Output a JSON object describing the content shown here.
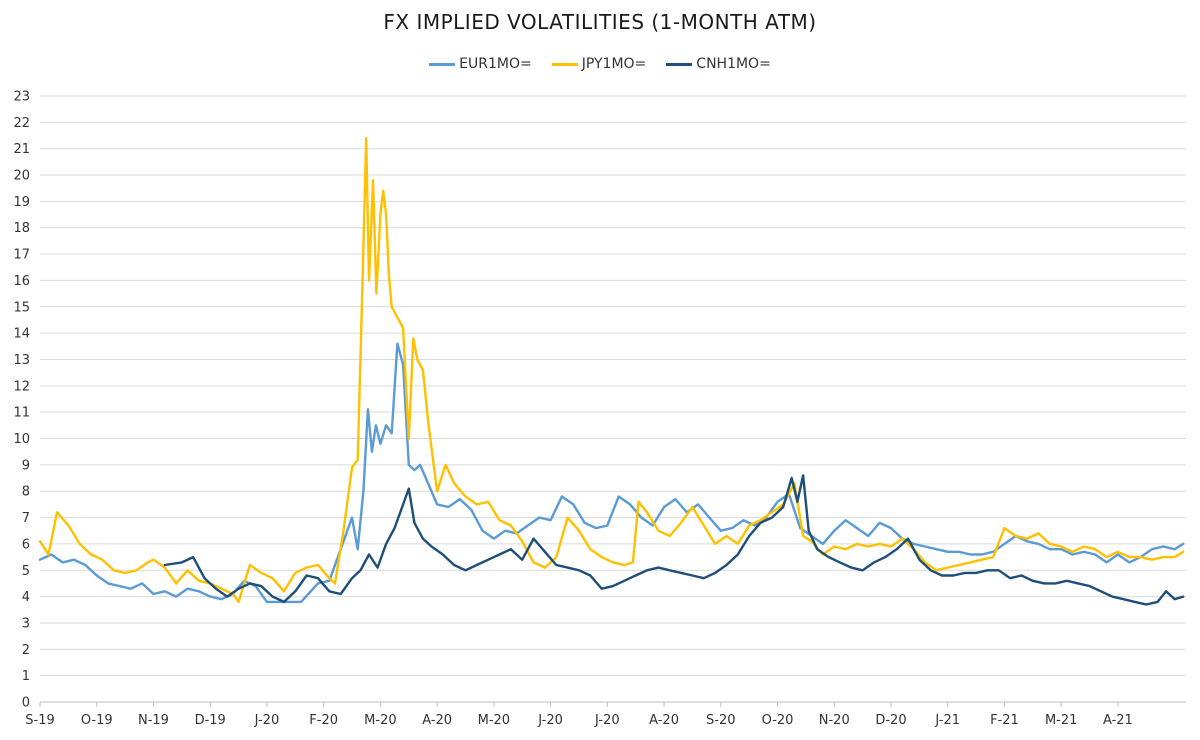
{
  "chart_data": {
    "type": "line",
    "title": "FX IMPLIED VOLATILITIES (1-MONTH ATM)",
    "legend_position": "top",
    "grid": true,
    "ylim": [
      0,
      23
    ],
    "yticks": [
      0,
      1,
      2,
      3,
      4,
      5,
      6,
      7,
      8,
      9,
      10,
      11,
      12,
      13,
      14,
      15,
      16,
      17,
      18,
      19,
      20,
      21,
      22,
      23
    ],
    "xticks": [
      "S-19",
      "O-19",
      "N-19",
      "D-19",
      "J-20",
      "F-20",
      "M-20",
      "A-20",
      "M-20",
      "J-20",
      "J-20",
      "A-20",
      "S-20",
      "O-20",
      "N-20",
      "D-20",
      "J-21",
      "F-21",
      "M-21",
      "A-21"
    ],
    "x_range": [
      0,
      20.2
    ],
    "series": [
      {
        "name": "EUR1MO=",
        "color": "#5b9bd5",
        "points": [
          [
            0,
            5.4
          ],
          [
            0.2,
            5.6
          ],
          [
            0.4,
            5.3
          ],
          [
            0.6,
            5.4
          ],
          [
            0.8,
            5.2
          ],
          [
            1.0,
            4.8
          ],
          [
            1.2,
            4.5
          ],
          [
            1.4,
            4.4
          ],
          [
            1.6,
            4.3
          ],
          [
            1.8,
            4.5
          ],
          [
            2.0,
            4.1
          ],
          [
            2.2,
            4.2
          ],
          [
            2.4,
            4.0
          ],
          [
            2.6,
            4.3
          ],
          [
            2.8,
            4.2
          ],
          [
            3.0,
            4.0
          ],
          [
            3.2,
            3.9
          ],
          [
            3.4,
            4.1
          ],
          [
            3.6,
            4.6
          ],
          [
            3.8,
            4.4
          ],
          [
            4.0,
            3.8
          ],
          [
            4.3,
            3.8
          ],
          [
            4.6,
            3.8
          ],
          [
            4.9,
            4.5
          ],
          [
            5.1,
            4.6
          ],
          [
            5.3,
            5.8
          ],
          [
            5.5,
            7.0
          ],
          [
            5.6,
            5.8
          ],
          [
            5.7,
            8.0
          ],
          [
            5.78,
            11.1
          ],
          [
            5.85,
            9.5
          ],
          [
            5.92,
            10.5
          ],
          [
            6.0,
            9.8
          ],
          [
            6.1,
            10.5
          ],
          [
            6.2,
            10.2
          ],
          [
            6.3,
            13.6
          ],
          [
            6.4,
            12.8
          ],
          [
            6.5,
            9.0
          ],
          [
            6.6,
            8.8
          ],
          [
            6.7,
            9.0
          ],
          [
            6.8,
            8.5
          ],
          [
            7.0,
            7.5
          ],
          [
            7.2,
            7.4
          ],
          [
            7.4,
            7.7
          ],
          [
            7.6,
            7.3
          ],
          [
            7.8,
            6.5
          ],
          [
            8.0,
            6.2
          ],
          [
            8.2,
            6.5
          ],
          [
            8.4,
            6.4
          ],
          [
            8.6,
            6.7
          ],
          [
            8.8,
            7.0
          ],
          [
            9.0,
            6.9
          ],
          [
            9.2,
            7.8
          ],
          [
            9.4,
            7.5
          ],
          [
            9.6,
            6.8
          ],
          [
            9.8,
            6.6
          ],
          [
            10.0,
            6.7
          ],
          [
            10.2,
            7.8
          ],
          [
            10.4,
            7.5
          ],
          [
            10.6,
            7.0
          ],
          [
            10.8,
            6.7
          ],
          [
            11.0,
            7.4
          ],
          [
            11.2,
            7.7
          ],
          [
            11.4,
            7.2
          ],
          [
            11.6,
            7.5
          ],
          [
            11.8,
            7.0
          ],
          [
            12.0,
            6.5
          ],
          [
            12.2,
            6.6
          ],
          [
            12.4,
            6.9
          ],
          [
            12.6,
            6.7
          ],
          [
            12.8,
            7.0
          ],
          [
            13.0,
            7.6
          ],
          [
            13.2,
            7.9
          ],
          [
            13.4,
            6.6
          ],
          [
            13.6,
            6.3
          ],
          [
            13.8,
            6.0
          ],
          [
            14.0,
            6.5
          ],
          [
            14.2,
            6.9
          ],
          [
            14.4,
            6.6
          ],
          [
            14.6,
            6.3
          ],
          [
            14.8,
            6.8
          ],
          [
            15.0,
            6.6
          ],
          [
            15.2,
            6.2
          ],
          [
            15.4,
            6.0
          ],
          [
            15.6,
            5.9
          ],
          [
            15.8,
            5.8
          ],
          [
            16.0,
            5.7
          ],
          [
            16.2,
            5.7
          ],
          [
            16.4,
            5.6
          ],
          [
            16.6,
            5.6
          ],
          [
            16.8,
            5.7
          ],
          [
            17.0,
            6.0
          ],
          [
            17.2,
            6.3
          ],
          [
            17.4,
            6.1
          ],
          [
            17.6,
            6.0
          ],
          [
            17.8,
            5.8
          ],
          [
            18.0,
            5.8
          ],
          [
            18.2,
            5.6
          ],
          [
            18.4,
            5.7
          ],
          [
            18.6,
            5.6
          ],
          [
            18.8,
            5.3
          ],
          [
            19.0,
            5.6
          ],
          [
            19.2,
            5.3
          ],
          [
            19.4,
            5.5
          ],
          [
            19.6,
            5.8
          ],
          [
            19.8,
            5.9
          ],
          [
            20.0,
            5.8
          ],
          [
            20.15,
            6.0
          ]
        ]
      },
      {
        "name": "JPY1MO=",
        "color": "#ffc000",
        "points": [
          [
            0,
            6.1
          ],
          [
            0.15,
            5.6
          ],
          [
            0.3,
            7.2
          ],
          [
            0.5,
            6.7
          ],
          [
            0.7,
            6.0
          ],
          [
            0.9,
            5.6
          ],
          [
            1.1,
            5.4
          ],
          [
            1.3,
            5.0
          ],
          [
            1.5,
            4.9
          ],
          [
            1.7,
            5.0
          ],
          [
            1.9,
            5.3
          ],
          [
            2.0,
            5.4
          ],
          [
            2.2,
            5.1
          ],
          [
            2.4,
            4.5
          ],
          [
            2.6,
            5.0
          ],
          [
            2.8,
            4.6
          ],
          [
            3.0,
            4.5
          ],
          [
            3.2,
            4.3
          ],
          [
            3.4,
            4.1
          ],
          [
            3.5,
            3.8
          ],
          [
            3.7,
            5.2
          ],
          [
            3.9,
            4.9
          ],
          [
            4.1,
            4.7
          ],
          [
            4.3,
            4.2
          ],
          [
            4.5,
            4.9
          ],
          [
            4.7,
            5.1
          ],
          [
            4.9,
            5.2
          ],
          [
            5.1,
            4.7
          ],
          [
            5.2,
            4.5
          ],
          [
            5.35,
            6.5
          ],
          [
            5.5,
            8.9
          ],
          [
            5.6,
            9.2
          ],
          [
            5.68,
            15.5
          ],
          [
            5.75,
            21.4
          ],
          [
            5.8,
            16.0
          ],
          [
            5.87,
            19.8
          ],
          [
            5.93,
            15.5
          ],
          [
            6.0,
            18.5
          ],
          [
            6.05,
            19.4
          ],
          [
            6.1,
            18.5
          ],
          [
            6.15,
            16.2
          ],
          [
            6.2,
            15.0
          ],
          [
            6.3,
            14.6
          ],
          [
            6.4,
            14.2
          ],
          [
            6.5,
            10.0
          ],
          [
            6.58,
            13.8
          ],
          [
            6.65,
            13.0
          ],
          [
            6.75,
            12.6
          ],
          [
            6.85,
            10.5
          ],
          [
            7.0,
            8.0
          ],
          [
            7.15,
            9.0
          ],
          [
            7.3,
            8.3
          ],
          [
            7.5,
            7.8
          ],
          [
            7.7,
            7.5
          ],
          [
            7.9,
            7.6
          ],
          [
            8.1,
            6.9
          ],
          [
            8.3,
            6.7
          ],
          [
            8.5,
            6.1
          ],
          [
            8.7,
            5.3
          ],
          [
            8.9,
            5.1
          ],
          [
            9.1,
            5.5
          ],
          [
            9.3,
            7.0
          ],
          [
            9.5,
            6.5
          ],
          [
            9.7,
            5.8
          ],
          [
            9.9,
            5.5
          ],
          [
            10.1,
            5.3
          ],
          [
            10.3,
            5.2
          ],
          [
            10.45,
            5.3
          ],
          [
            10.55,
            7.6
          ],
          [
            10.7,
            7.2
          ],
          [
            10.9,
            6.5
          ],
          [
            11.1,
            6.3
          ],
          [
            11.3,
            6.8
          ],
          [
            11.5,
            7.4
          ],
          [
            11.7,
            6.7
          ],
          [
            11.9,
            6.0
          ],
          [
            12.1,
            6.3
          ],
          [
            12.3,
            6.0
          ],
          [
            12.5,
            6.7
          ],
          [
            12.7,
            6.9
          ],
          [
            12.9,
            7.2
          ],
          [
            13.1,
            7.5
          ],
          [
            13.3,
            8.3
          ],
          [
            13.45,
            6.3
          ],
          [
            13.6,
            6.1
          ],
          [
            13.8,
            5.6
          ],
          [
            14.0,
            5.9
          ],
          [
            14.2,
            5.8
          ],
          [
            14.4,
            6.0
          ],
          [
            14.6,
            5.9
          ],
          [
            14.8,
            6.0
          ],
          [
            15.0,
            5.9
          ],
          [
            15.2,
            6.2
          ],
          [
            15.4,
            5.8
          ],
          [
            15.6,
            5.3
          ],
          [
            15.8,
            5.0
          ],
          [
            16.0,
            5.1
          ],
          [
            16.2,
            5.2
          ],
          [
            16.4,
            5.3
          ],
          [
            16.6,
            5.4
          ],
          [
            16.8,
            5.5
          ],
          [
            17.0,
            6.6
          ],
          [
            17.2,
            6.3
          ],
          [
            17.4,
            6.2
          ],
          [
            17.6,
            6.4
          ],
          [
            17.8,
            6.0
          ],
          [
            18.0,
            5.9
          ],
          [
            18.2,
            5.7
          ],
          [
            18.4,
            5.9
          ],
          [
            18.6,
            5.8
          ],
          [
            18.8,
            5.5
          ],
          [
            19.0,
            5.7
          ],
          [
            19.2,
            5.5
          ],
          [
            19.4,
            5.5
          ],
          [
            19.6,
            5.4
          ],
          [
            19.8,
            5.5
          ],
          [
            20.0,
            5.5
          ],
          [
            20.15,
            5.7
          ]
        ]
      },
      {
        "name": "CNH1MO=",
        "color": "#1f4e79",
        "points": [
          [
            2.2,
            5.2
          ],
          [
            2.5,
            5.3
          ],
          [
            2.7,
            5.5
          ],
          [
            2.9,
            4.7
          ],
          [
            3.1,
            4.3
          ],
          [
            3.3,
            4.0
          ],
          [
            3.5,
            4.3
          ],
          [
            3.7,
            4.5
          ],
          [
            3.9,
            4.4
          ],
          [
            4.1,
            4.0
          ],
          [
            4.3,
            3.8
          ],
          [
            4.5,
            4.2
          ],
          [
            4.7,
            4.8
          ],
          [
            4.9,
            4.7
          ],
          [
            5.1,
            4.2
          ],
          [
            5.3,
            4.1
          ],
          [
            5.5,
            4.7
          ],
          [
            5.65,
            5.0
          ],
          [
            5.8,
            5.6
          ],
          [
            5.95,
            5.1
          ],
          [
            6.1,
            6.0
          ],
          [
            6.25,
            6.6
          ],
          [
            6.4,
            7.5
          ],
          [
            6.5,
            8.1
          ],
          [
            6.6,
            6.8
          ],
          [
            6.75,
            6.2
          ],
          [
            6.9,
            5.9
          ],
          [
            7.1,
            5.6
          ],
          [
            7.3,
            5.2
          ],
          [
            7.5,
            5.0
          ],
          [
            7.7,
            5.2
          ],
          [
            7.9,
            5.4
          ],
          [
            8.1,
            5.6
          ],
          [
            8.3,
            5.8
          ],
          [
            8.5,
            5.4
          ],
          [
            8.7,
            6.2
          ],
          [
            8.9,
            5.7
          ],
          [
            9.1,
            5.2
          ],
          [
            9.3,
            5.1
          ],
          [
            9.5,
            5.0
          ],
          [
            9.7,
            4.8
          ],
          [
            9.9,
            4.3
          ],
          [
            10.1,
            4.4
          ],
          [
            10.3,
            4.6
          ],
          [
            10.5,
            4.8
          ],
          [
            10.7,
            5.0
          ],
          [
            10.9,
            5.1
          ],
          [
            11.1,
            5.0
          ],
          [
            11.3,
            4.9
          ],
          [
            11.5,
            4.8
          ],
          [
            11.7,
            4.7
          ],
          [
            11.9,
            4.9
          ],
          [
            12.1,
            5.2
          ],
          [
            12.3,
            5.6
          ],
          [
            12.5,
            6.3
          ],
          [
            12.7,
            6.8
          ],
          [
            12.9,
            7.0
          ],
          [
            13.1,
            7.4
          ],
          [
            13.25,
            8.5
          ],
          [
            13.35,
            7.6
          ],
          [
            13.45,
            8.6
          ],
          [
            13.55,
            6.5
          ],
          [
            13.7,
            5.8
          ],
          [
            13.9,
            5.5
          ],
          [
            14.1,
            5.3
          ],
          [
            14.3,
            5.1
          ],
          [
            14.5,
            5.0
          ],
          [
            14.7,
            5.3
          ],
          [
            14.9,
            5.5
          ],
          [
            15.1,
            5.8
          ],
          [
            15.3,
            6.2
          ],
          [
            15.5,
            5.4
          ],
          [
            15.7,
            5.0
          ],
          [
            15.9,
            4.8
          ],
          [
            16.1,
            4.8
          ],
          [
            16.3,
            4.9
          ],
          [
            16.5,
            4.9
          ],
          [
            16.7,
            5.0
          ],
          [
            16.9,
            5.0
          ],
          [
            17.1,
            4.7
          ],
          [
            17.3,
            4.8
          ],
          [
            17.5,
            4.6
          ],
          [
            17.7,
            4.5
          ],
          [
            17.9,
            4.5
          ],
          [
            18.1,
            4.6
          ],
          [
            18.3,
            4.5
          ],
          [
            18.5,
            4.4
          ],
          [
            18.7,
            4.2
          ],
          [
            18.9,
            4.0
          ],
          [
            19.1,
            3.9
          ],
          [
            19.3,
            3.8
          ],
          [
            19.5,
            3.7
          ],
          [
            19.7,
            3.8
          ],
          [
            19.85,
            4.2
          ],
          [
            20.0,
            3.9
          ],
          [
            20.15,
            4.0
          ]
        ]
      }
    ]
  }
}
